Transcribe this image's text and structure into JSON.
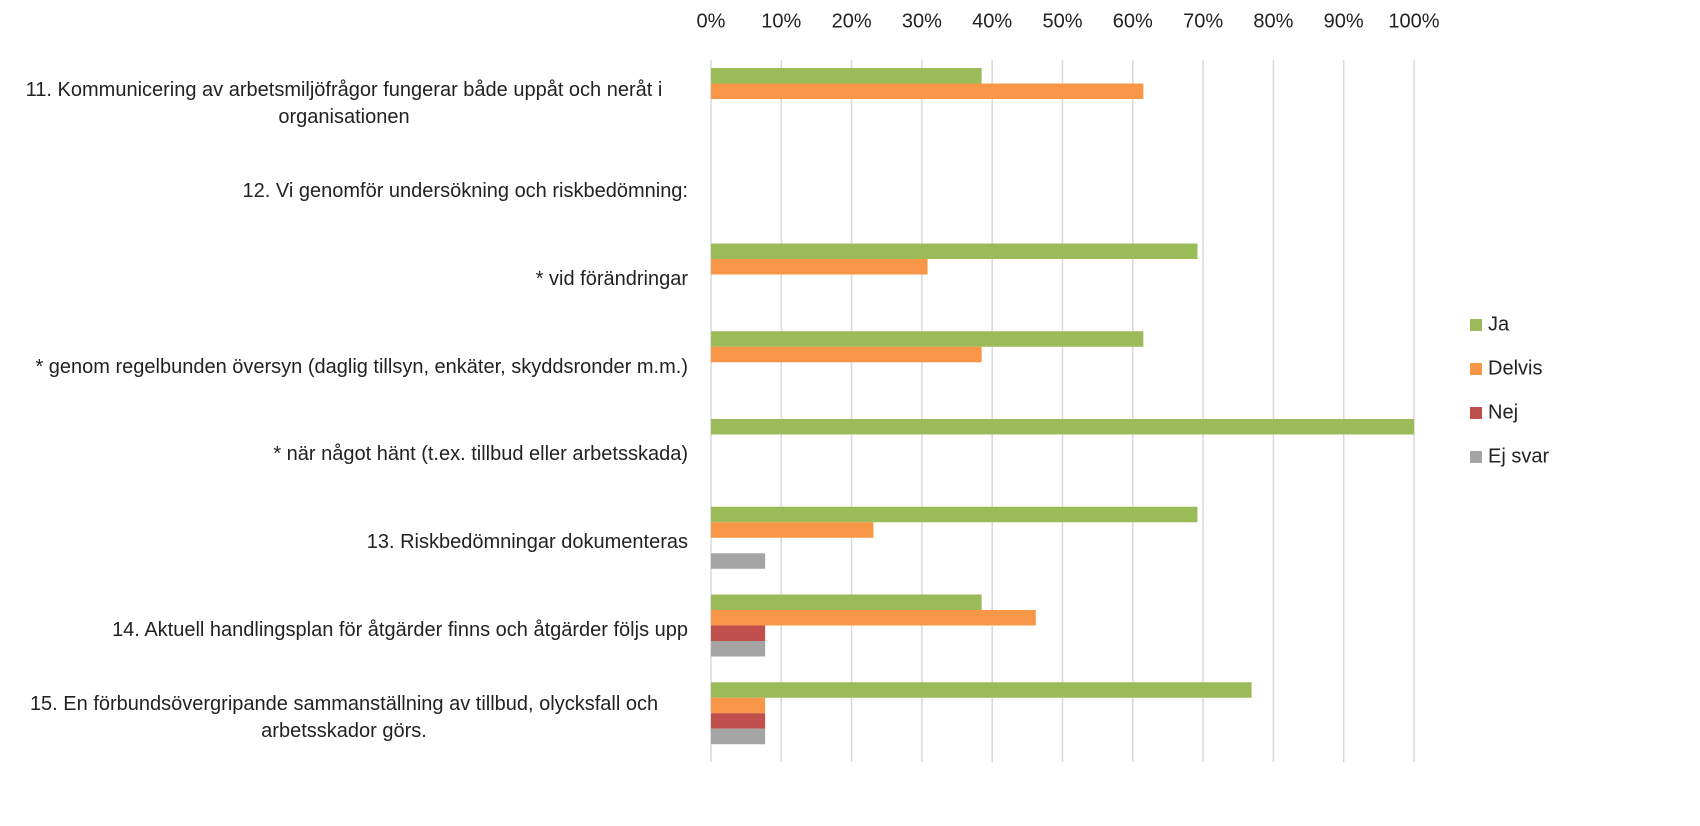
{
  "chart_data": {
    "type": "hbar",
    "categories": [
      "11. Kommunicering av arbetsmiljöfrågor fungerar både uppåt och neråt i organisationen",
      "12. Vi genomför undersökning och riskbedömning:",
      "* vid förändringar",
      "* genom regelbunden översyn (daglig tillsyn, enkäter, skyddsronder m.m.)",
      "* när något hänt (t.ex. tillbud eller arbetsskada)",
      "13. Riskbedömningar dokumenteras",
      "14. Aktuell handlingsplan för åtgärder finns och åtgärder följs upp",
      "15. En förbundsövergripande sammanställning av tillbud, olycksfall och arbetsskador görs."
    ],
    "series": [
      {
        "name": "Ja",
        "color": "#9bbb59",
        "values": [
          38.5,
          null,
          69.2,
          61.5,
          100,
          69.2,
          38.5,
          76.9
        ]
      },
      {
        "name": "Delvis",
        "color": "#f79646",
        "values": [
          61.5,
          null,
          30.8,
          38.5,
          0,
          23.1,
          46.2,
          7.7
        ]
      },
      {
        "name": "Nej",
        "color": "#c0504d",
        "values": [
          0,
          null,
          0,
          0,
          0,
          0,
          7.7,
          7.7
        ]
      },
      {
        "name": "Ej svar",
        "color": "#a5a5a5",
        "values": [
          0,
          null,
          0,
          0,
          0,
          7.7,
          7.7,
          7.7
        ]
      }
    ],
    "xlim": [
      0,
      100
    ],
    "xticks": [
      {
        "value": 0,
        "label": "0%"
      },
      {
        "value": 10,
        "label": "10%"
      },
      {
        "value": 20,
        "label": "20%"
      },
      {
        "value": 30,
        "label": "30%"
      },
      {
        "value": 40,
        "label": "40%"
      },
      {
        "value": 50,
        "label": "50%"
      },
      {
        "value": 60,
        "label": "60%"
      },
      {
        "value": 70,
        "label": "70%"
      },
      {
        "value": 80,
        "label": "80%"
      },
      {
        "value": 90,
        "label": "90%"
      },
      {
        "value": 100,
        "label": "100%"
      }
    ],
    "grid": true,
    "legend": "right"
  }
}
